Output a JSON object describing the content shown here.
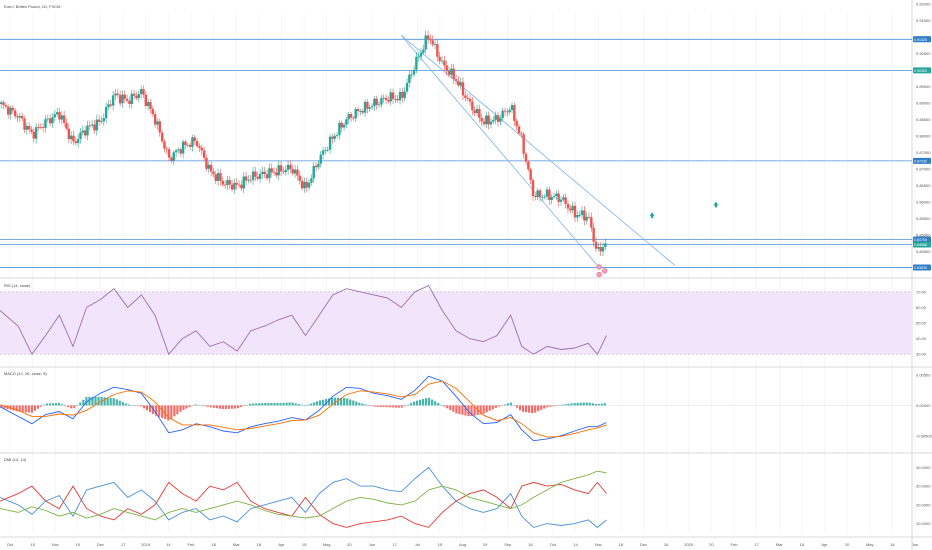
{
  "header": {
    "symbol_title": "Euro / British Pound, 1D, FXCM",
    "rsi_title": "RSI (14, close)",
    "macd_title": "MACD (12, 26, close, 9)",
    "dmi_title": "DMI (14, 14)"
  },
  "colors": {
    "up": "#26a69a",
    "down": "#ef5350",
    "hline": "#4a90d9",
    "trend": "#7db3e8",
    "rsi": "#9c6fb0",
    "rsi_band": "#f1e4fb",
    "macd_line": "#2962ff",
    "signal_line": "#ff6d00",
    "dmi_plus": "#4a90d9",
    "dmi_minus": "#e53935",
    "adx": "#7cb342",
    "grid": "#eeeeee",
    "tag": "#2f7ec7"
  },
  "x_axis": {
    "ticks": [
      "Oct",
      "15",
      "Nov",
      "19",
      "Dec",
      "17",
      "2019",
      "14",
      "Feb",
      "18",
      "Mar",
      "18",
      "Apr",
      "15",
      "May",
      "20",
      "Jun",
      "17",
      "Jul",
      "15",
      "Aug",
      "19",
      "Sep",
      "16",
      "Oct",
      "14",
      "Nov",
      "18",
      "Dec",
      "16",
      "2020",
      "20",
      "Feb",
      "17",
      "Mar",
      "16",
      "Apr",
      "20",
      "May",
      "18",
      "Jun"
    ]
  },
  "price_axis": {
    "ticks": [
      "0.92000",
      "0.91500",
      "0.91000",
      "0.90500",
      "0.90000",
      "0.89500",
      "0.89000",
      "0.88500",
      "0.88000",
      "0.87500",
      "0.87000",
      "0.86500",
      "0.86000",
      "0.85500",
      "0.85000",
      "0.84500",
      "0.84000"
    ],
    "tags": [
      "0.91320",
      "0.90300",
      "0.87330",
      "0.84750",
      "0.84588",
      "0.83830"
    ]
  },
  "rsi_axis": {
    "ticks": [
      "70.00",
      "60.00",
      "50.00",
      "40.00",
      "30.00"
    ]
  },
  "macd_axis": {
    "ticks": [
      "0.00500",
      "0.00000",
      "-0.00500"
    ]
  },
  "dmi_axis": {
    "ticks": [
      "40.0000",
      "30.0000",
      "20.0000",
      "10.0000"
    ]
  },
  "chart_data": {
    "type": "candlestick",
    "title": "Euro / British Pound, 1D, FXCM",
    "price_range": [
      0.8375,
      0.9215
    ],
    "horizontal_levels": [
      0.9132,
      0.903,
      0.8733,
      0.8475,
      0.8459,
      0.8383
    ],
    "trendlines": [
      {
        "from": [
          0.44,
          0.9145
        ],
        "to": [
          0.655,
          0.839
        ]
      },
      {
        "from": [
          0.44,
          0.9145
        ],
        "to": [
          0.74,
          0.839
        ]
      }
    ],
    "close_path": [
      [
        0.0,
        0.892
      ],
      [
        0.02,
        0.888
      ],
      [
        0.035,
        0.882
      ],
      [
        0.05,
        0.886
      ],
      [
        0.065,
        0.889
      ],
      [
        0.08,
        0.879
      ],
      [
        0.095,
        0.884
      ],
      [
        0.11,
        0.886
      ],
      [
        0.125,
        0.895
      ],
      [
        0.14,
        0.893
      ],
      [
        0.155,
        0.896
      ],
      [
        0.17,
        0.887
      ],
      [
        0.185,
        0.874
      ],
      [
        0.2,
        0.878
      ],
      [
        0.215,
        0.88
      ],
      [
        0.23,
        0.87
      ],
      [
        0.245,
        0.866
      ],
      [
        0.26,
        0.865
      ],
      [
        0.275,
        0.868
      ],
      [
        0.29,
        0.869
      ],
      [
        0.305,
        0.87
      ],
      [
        0.32,
        0.871
      ],
      [
        0.335,
        0.864
      ],
      [
        0.35,
        0.874
      ],
      [
        0.365,
        0.881
      ],
      [
        0.38,
        0.887
      ],
      [
        0.395,
        0.89
      ],
      [
        0.41,
        0.892
      ],
      [
        0.425,
        0.894
      ],
      [
        0.44,
        0.894
      ],
      [
        0.455,
        0.905
      ],
      [
        0.47,
        0.9145
      ],
      [
        0.485,
        0.905
      ],
      [
        0.5,
        0.9
      ],
      [
        0.515,
        0.892
      ],
      [
        0.53,
        0.886
      ],
      [
        0.545,
        0.887
      ],
      [
        0.56,
        0.891
      ],
      [
        0.572,
        0.88
      ],
      [
        0.585,
        0.862
      ],
      [
        0.6,
        0.862
      ],
      [
        0.615,
        0.861
      ],
      [
        0.63,
        0.856
      ],
      [
        0.645,
        0.855
      ],
      [
        0.655,
        0.843
      ],
      [
        0.665,
        0.847
      ]
    ],
    "rsi_range": [
      25,
      75
    ],
    "rsi_band": [
      30,
      70
    ],
    "rsi_path": [
      [
        0.0,
        58
      ],
      [
        0.02,
        48
      ],
      [
        0.035,
        30
      ],
      [
        0.05,
        42
      ],
      [
        0.065,
        55
      ],
      [
        0.08,
        35
      ],
      [
        0.095,
        60
      ],
      [
        0.11,
        65
      ],
      [
        0.125,
        72
      ],
      [
        0.14,
        60
      ],
      [
        0.155,
        68
      ],
      [
        0.17,
        55
      ],
      [
        0.185,
        30
      ],
      [
        0.2,
        40
      ],
      [
        0.215,
        45
      ],
      [
        0.23,
        35
      ],
      [
        0.245,
        38
      ],
      [
        0.26,
        32
      ],
      [
        0.275,
        45
      ],
      [
        0.29,
        48
      ],
      [
        0.305,
        52
      ],
      [
        0.32,
        55
      ],
      [
        0.335,
        42
      ],
      [
        0.35,
        55
      ],
      [
        0.365,
        68
      ],
      [
        0.38,
        72
      ],
      [
        0.395,
        70
      ],
      [
        0.41,
        68
      ],
      [
        0.425,
        66
      ],
      [
        0.44,
        60
      ],
      [
        0.455,
        70
      ],
      [
        0.47,
        74
      ],
      [
        0.485,
        58
      ],
      [
        0.5,
        45
      ],
      [
        0.515,
        40
      ],
      [
        0.53,
        38
      ],
      [
        0.545,
        42
      ],
      [
        0.56,
        55
      ],
      [
        0.572,
        35
      ],
      [
        0.585,
        30
      ],
      [
        0.6,
        35
      ],
      [
        0.615,
        33
      ],
      [
        0.63,
        34
      ],
      [
        0.645,
        37
      ],
      [
        0.655,
        30
      ],
      [
        0.665,
        42
      ]
    ],
    "macd_range": [
      -0.007,
      0.0055
    ],
    "macd_line": [
      [
        0.0,
        -0.0002
      ],
      [
        0.02,
        -0.0018
      ],
      [
        0.035,
        -0.003
      ],
      [
        0.05,
        -0.0015
      ],
      [
        0.065,
        -0.001
      ],
      [
        0.08,
        -0.0022
      ],
      [
        0.095,
        0.0006
      ],
      [
        0.11,
        0.002
      ],
      [
        0.125,
        0.003
      ],
      [
        0.14,
        0.0026
      ],
      [
        0.155,
        0.002
      ],
      [
        0.17,
        -0.001
      ],
      [
        0.185,
        -0.0045
      ],
      [
        0.2,
        -0.004
      ],
      [
        0.215,
        -0.003
      ],
      [
        0.23,
        -0.0035
      ],
      [
        0.245,
        -0.0042
      ],
      [
        0.26,
        -0.0045
      ],
      [
        0.275,
        -0.0035
      ],
      [
        0.29,
        -0.003
      ],
      [
        0.305,
        -0.0026
      ],
      [
        0.32,
        -0.002
      ],
      [
        0.335,
        -0.0024
      ],
      [
        0.35,
        -0.0008
      ],
      [
        0.365,
        0.0015
      ],
      [
        0.38,
        0.003
      ],
      [
        0.395,
        0.0028
      ],
      [
        0.41,
        0.002
      ],
      [
        0.425,
        0.0016
      ],
      [
        0.44,
        0.001
      ],
      [
        0.455,
        0.0025
      ],
      [
        0.47,
        0.0048
      ],
      [
        0.485,
        0.004
      ],
      [
        0.5,
        0.0015
      ],
      [
        0.515,
        -0.0012
      ],
      [
        0.53,
        -0.003
      ],
      [
        0.545,
        -0.0028
      ],
      [
        0.56,
        -0.0015
      ],
      [
        0.572,
        -0.004
      ],
      [
        0.585,
        -0.0058
      ],
      [
        0.6,
        -0.0055
      ],
      [
        0.615,
        -0.005
      ],
      [
        0.63,
        -0.0042
      ],
      [
        0.645,
        -0.0035
      ],
      [
        0.655,
        -0.0035
      ],
      [
        0.665,
        -0.0028
      ]
    ],
    "signal_line": [
      [
        0.0,
        0.0001
      ],
      [
        0.02,
        -0.0008
      ],
      [
        0.035,
        -0.0018
      ],
      [
        0.05,
        -0.0018
      ],
      [
        0.065,
        -0.0014
      ],
      [
        0.08,
        -0.0016
      ],
      [
        0.095,
        -0.0008
      ],
      [
        0.11,
        0.0006
      ],
      [
        0.125,
        0.0018
      ],
      [
        0.14,
        0.0024
      ],
      [
        0.155,
        0.0022
      ],
      [
        0.17,
        0.0006
      ],
      [
        0.185,
        -0.002
      ],
      [
        0.2,
        -0.0032
      ],
      [
        0.215,
        -0.0032
      ],
      [
        0.23,
        -0.0032
      ],
      [
        0.245,
        -0.0036
      ],
      [
        0.26,
        -0.004
      ],
      [
        0.275,
        -0.0038
      ],
      [
        0.29,
        -0.0034
      ],
      [
        0.305,
        -0.003
      ],
      [
        0.32,
        -0.0025
      ],
      [
        0.335,
        -0.0024
      ],
      [
        0.35,
        -0.0016
      ],
      [
        0.365,
        0.0002
      ],
      [
        0.38,
        0.0018
      ],
      [
        0.395,
        0.0024
      ],
      [
        0.41,
        0.0022
      ],
      [
        0.425,
        0.0019
      ],
      [
        0.44,
        0.0014
      ],
      [
        0.455,
        0.0018
      ],
      [
        0.47,
        0.0035
      ],
      [
        0.485,
        0.004
      ],
      [
        0.5,
        0.0028
      ],
      [
        0.515,
        0.0006
      ],
      [
        0.53,
        -0.0016
      ],
      [
        0.545,
        -0.0025
      ],
      [
        0.56,
        -0.002
      ],
      [
        0.572,
        -0.003
      ],
      [
        0.585,
        -0.0045
      ],
      [
        0.6,
        -0.0052
      ],
      [
        0.615,
        -0.0051
      ],
      [
        0.63,
        -0.0046
      ],
      [
        0.645,
        -0.004
      ],
      [
        0.655,
        -0.0037
      ],
      [
        0.665,
        -0.0032
      ]
    ],
    "dmi_range": [
      5,
      45
    ],
    "dmi_plus": [
      [
        0.0,
        24
      ],
      [
        0.02,
        20
      ],
      [
        0.035,
        15
      ],
      [
        0.05,
        22
      ],
      [
        0.065,
        25
      ],
      [
        0.08,
        14
      ],
      [
        0.095,
        28
      ],
      [
        0.11,
        30
      ],
      [
        0.125,
        32
      ],
      [
        0.14,
        24
      ],
      [
        0.155,
        28
      ],
      [
        0.17,
        22
      ],
      [
        0.185,
        12
      ],
      [
        0.2,
        16
      ],
      [
        0.215,
        18
      ],
      [
        0.23,
        12
      ],
      [
        0.245,
        14
      ],
      [
        0.26,
        11
      ],
      [
        0.275,
        18
      ],
      [
        0.29,
        20
      ],
      [
        0.305,
        22
      ],
      [
        0.32,
        24
      ],
      [
        0.335,
        16
      ],
      [
        0.35,
        26
      ],
      [
        0.365,
        32
      ],
      [
        0.38,
        34
      ],
      [
        0.395,
        30
      ],
      [
        0.41,
        30
      ],
      [
        0.425,
        28
      ],
      [
        0.44,
        27
      ],
      [
        0.455,
        34
      ],
      [
        0.47,
        40
      ],
      [
        0.485,
        30
      ],
      [
        0.5,
        22
      ],
      [
        0.515,
        18
      ],
      [
        0.53,
        16
      ],
      [
        0.545,
        18
      ],
      [
        0.56,
        26
      ],
      [
        0.572,
        14
      ],
      [
        0.585,
        8
      ],
      [
        0.6,
        10
      ],
      [
        0.615,
        9
      ],
      [
        0.63,
        10
      ],
      [
        0.645,
        12
      ],
      [
        0.655,
        8
      ],
      [
        0.665,
        12
      ]
    ],
    "dmi_minus": [
      [
        0.0,
        22
      ],
      [
        0.02,
        26
      ],
      [
        0.035,
        30
      ],
      [
        0.05,
        22
      ],
      [
        0.065,
        18
      ],
      [
        0.08,
        30
      ],
      [
        0.095,
        18
      ],
      [
        0.11,
        14
      ],
      [
        0.125,
        12
      ],
      [
        0.14,
        18
      ],
      [
        0.155,
        15
      ],
      [
        0.17,
        20
      ],
      [
        0.185,
        32
      ],
      [
        0.2,
        26
      ],
      [
        0.215,
        22
      ],
      [
        0.23,
        30
      ],
      [
        0.245,
        28
      ],
      [
        0.26,
        32
      ],
      [
        0.275,
        22
      ],
      [
        0.29,
        18
      ],
      [
        0.305,
        16
      ],
      [
        0.32,
        14
      ],
      [
        0.335,
        24
      ],
      [
        0.35,
        15
      ],
      [
        0.365,
        10
      ],
      [
        0.38,
        8
      ],
      [
        0.395,
        10
      ],
      [
        0.41,
        11
      ],
      [
        0.425,
        12
      ],
      [
        0.44,
        14
      ],
      [
        0.455,
        10
      ],
      [
        0.47,
        8
      ],
      [
        0.485,
        16
      ],
      [
        0.5,
        22
      ],
      [
        0.515,
        26
      ],
      [
        0.53,
        28
      ],
      [
        0.545,
        24
      ],
      [
        0.56,
        18
      ],
      [
        0.572,
        30
      ],
      [
        0.585,
        32
      ],
      [
        0.6,
        30
      ],
      [
        0.615,
        31
      ],
      [
        0.63,
        28
      ],
      [
        0.645,
        26
      ],
      [
        0.655,
        32
      ],
      [
        0.665,
        26
      ]
    ],
    "adx": [
      [
        0.0,
        18
      ],
      [
        0.02,
        16
      ],
      [
        0.035,
        19
      ],
      [
        0.05,
        17
      ],
      [
        0.065,
        14
      ],
      [
        0.08,
        16
      ],
      [
        0.095,
        13
      ],
      [
        0.11,
        15
      ],
      [
        0.125,
        18
      ],
      [
        0.14,
        16
      ],
      [
        0.155,
        14
      ],
      [
        0.17,
        12
      ],
      [
        0.185,
        16
      ],
      [
        0.2,
        18
      ],
      [
        0.215,
        16
      ],
      [
        0.23,
        18
      ],
      [
        0.245,
        20
      ],
      [
        0.26,
        22
      ],
      [
        0.275,
        20
      ],
      [
        0.29,
        17
      ],
      [
        0.305,
        15
      ],
      [
        0.32,
        14
      ],
      [
        0.335,
        13
      ],
      [
        0.35,
        14
      ],
      [
        0.365,
        18
      ],
      [
        0.38,
        22
      ],
      [
        0.395,
        24
      ],
      [
        0.41,
        23
      ],
      [
        0.425,
        21
      ],
      [
        0.44,
        20
      ],
      [
        0.455,
        22
      ],
      [
        0.47,
        28
      ],
      [
        0.485,
        30
      ],
      [
        0.5,
        28
      ],
      [
        0.515,
        24
      ],
      [
        0.53,
        22
      ],
      [
        0.545,
        20
      ],
      [
        0.56,
        18
      ],
      [
        0.572,
        20
      ],
      [
        0.585,
        24
      ],
      [
        0.6,
        28
      ],
      [
        0.615,
        32
      ],
      [
        0.63,
        34
      ],
      [
        0.645,
        36
      ],
      [
        0.655,
        38
      ],
      [
        0.665,
        37
      ]
    ]
  }
}
